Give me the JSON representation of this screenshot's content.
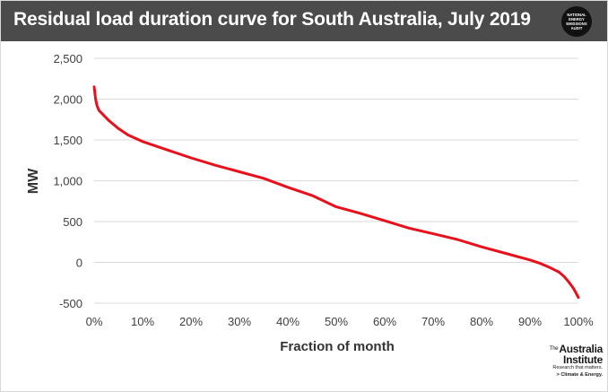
{
  "title": "Residual load duration curve for South Australia, July 2019",
  "badge": {
    "lines": [
      "NATIONAL",
      "ENERGY",
      "EMISSIONS",
      "AUDIT"
    ]
  },
  "logo": {
    "line1_small": "The",
    "line1": "Australia",
    "line2": "Institute",
    "line3": "Research that matters.",
    "line4": "> Climate & Energy."
  },
  "colors": {
    "title_bar": "#4b4b4b",
    "series": "#e8101b",
    "grid": "#d9d9d9"
  },
  "chart_data": {
    "type": "line",
    "title": "Residual load duration curve for South Australia, July 2019",
    "xlabel": "Fraction of month",
    "ylabel": "MW",
    "xlim": [
      0,
      100
    ],
    "ylim": [
      -500,
      2500
    ],
    "x_ticks": [
      0,
      10,
      20,
      30,
      40,
      50,
      60,
      70,
      80,
      90,
      100
    ],
    "x_tick_labels": [
      "0%",
      "10%",
      "20%",
      "30%",
      "40%",
      "50%",
      "60%",
      "70%",
      "80%",
      "90%",
      "100%"
    ],
    "y_ticks": [
      -500,
      0,
      500,
      1000,
      1500,
      2000,
      2500
    ],
    "y_tick_labels": [
      "-500",
      "0",
      "500",
      "1,000",
      "1,500",
      "2,000",
      "2,500"
    ],
    "grid": "horizontal",
    "series": [
      {
        "x": [
          0,
          0.3,
          0.6,
          1,
          2,
          3,
          5,
          7,
          10,
          15,
          20,
          25,
          30,
          35,
          40,
          45,
          50,
          55,
          60,
          65,
          70,
          75,
          80,
          85,
          90,
          92,
          94,
          95,
          96,
          97,
          98,
          99,
          100
        ],
        "y": [
          2150,
          2000,
          1920,
          1860,
          1800,
          1740,
          1640,
          1560,
          1480,
          1380,
          1280,
          1190,
          1110,
          1030,
          920,
          820,
          680,
          600,
          510,
          420,
          350,
          280,
          190,
          110,
          30,
          -10,
          -60,
          -90,
          -120,
          -170,
          -240,
          -320,
          -430
        ]
      }
    ]
  }
}
